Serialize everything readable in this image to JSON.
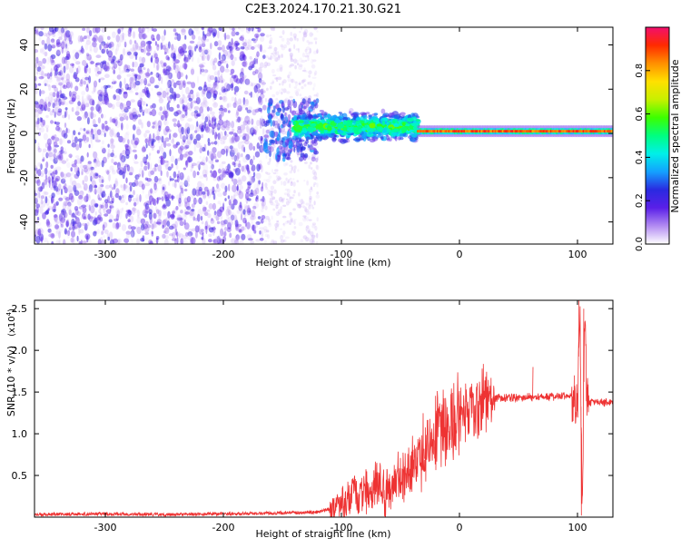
{
  "title": "C2E3.2024.170.21.30.G21",
  "chart_data": [
    {
      "type": "heatmap",
      "xlabel": "Height of straight line (km)",
      "ylabel": "Frequency (Hz)",
      "xlim": [
        -360,
        130
      ],
      "ylim": [
        -50,
        48
      ],
      "x_ticks": [
        -300,
        -200,
        -100,
        0,
        100
      ],
      "y_ticks": [
        -40,
        -20,
        0,
        20,
        40
      ],
      "colorbar": {
        "label": "Normalized spectral amplitude",
        "range": [
          0,
          1
        ],
        "ticks": [
          0.0,
          0.2,
          0.4,
          0.6,
          0.8
        ],
        "colormap": [
          "#ffffff",
          "#b38cf2",
          "#5a1fe8",
          "#2a2ae0",
          "#14a0ff",
          "#00f0e8",
          "#00ff80",
          "#3cff00",
          "#c8f000",
          "#ffe000",
          "#ff9000",
          "#ff2a00",
          "#f20f6e"
        ]
      },
      "regions": [
        {
          "x_range": [
            -360,
            -165
          ],
          "freq_range": [
            -50,
            48
          ],
          "pattern": "broadband noise",
          "amplitude": 0.15
        },
        {
          "x_range": [
            -165,
            -120
          ],
          "freq_range": [
            -12,
            15
          ],
          "pattern": "scattered signal",
          "amplitude": 0.3
        },
        {
          "x_range": [
            -140,
            -35
          ],
          "freq_center": 3,
          "freq_spread": 8,
          "pattern": "noisy carrier",
          "amplitude": 0.45
        },
        {
          "x_range": [
            -35,
            130
          ],
          "freq_center": 1,
          "freq_spread": 1.5,
          "pattern": "clean carrier",
          "amplitude": 0.9
        }
      ]
    },
    {
      "type": "line",
      "xlabel": "Height of straight line (km)",
      "ylabel": "SNR (10 * v/v)",
      "y_multiplier": "(x10^4)",
      "y_multiplier_base": "(x10",
      "y_multiplier_exp": "4",
      "y_multiplier_tail": ")",
      "xlim": [
        -360,
        130
      ],
      "ylim": [
        0,
        2.6
      ],
      "x_ticks": [
        -300,
        -200,
        -100,
        0,
        100
      ],
      "y_ticks": [
        0.5,
        1.0,
        1.5,
        2.0,
        2.5
      ],
      "y_tick_labels": [
        "0.5",
        "1.0",
        "1.5",
        "2.0",
        "2.5"
      ],
      "series": [
        {
          "color": "#ee3333",
          "x": [
            -360,
            -300,
            -250,
            -200,
            -150,
            -120,
            -110,
            -100,
            -90,
            -80,
            -70,
            -60,
            -50,
            -40,
            -30,
            -20,
            -10,
            0,
            10,
            20,
            30,
            40,
            50,
            60,
            70,
            80,
            90,
            95,
            100,
            102,
            104,
            106,
            108,
            110,
            115,
            120,
            130
          ],
          "y": [
            0.03,
            0.04,
            0.03,
            0.04,
            0.05,
            0.06,
            0.1,
            0.18,
            0.25,
            0.3,
            0.32,
            0.35,
            0.45,
            0.62,
            0.82,
            0.98,
            1.08,
            1.2,
            1.32,
            1.38,
            1.42,
            1.43,
            1.43,
            1.44,
            1.44,
            1.44,
            1.45,
            1.45,
            1.3,
            2.55,
            0.1,
            2.45,
            1.4,
            1.38,
            1.38,
            1.38,
            1.38
          ],
          "spikes": [
            [
              -30,
              0.7
            ],
            [
              -25,
              0.9
            ],
            [
              -15,
              1.25
            ],
            [
              -10,
              1.1
            ],
            [
              -5,
              1.32
            ],
            [
              62,
              1.8
            ],
            [
              97,
              1.7
            ],
            [
              101,
              2.6
            ],
            [
              103,
              0.02
            ],
            [
              105,
              2.5
            ]
          ]
        }
      ]
    }
  ]
}
